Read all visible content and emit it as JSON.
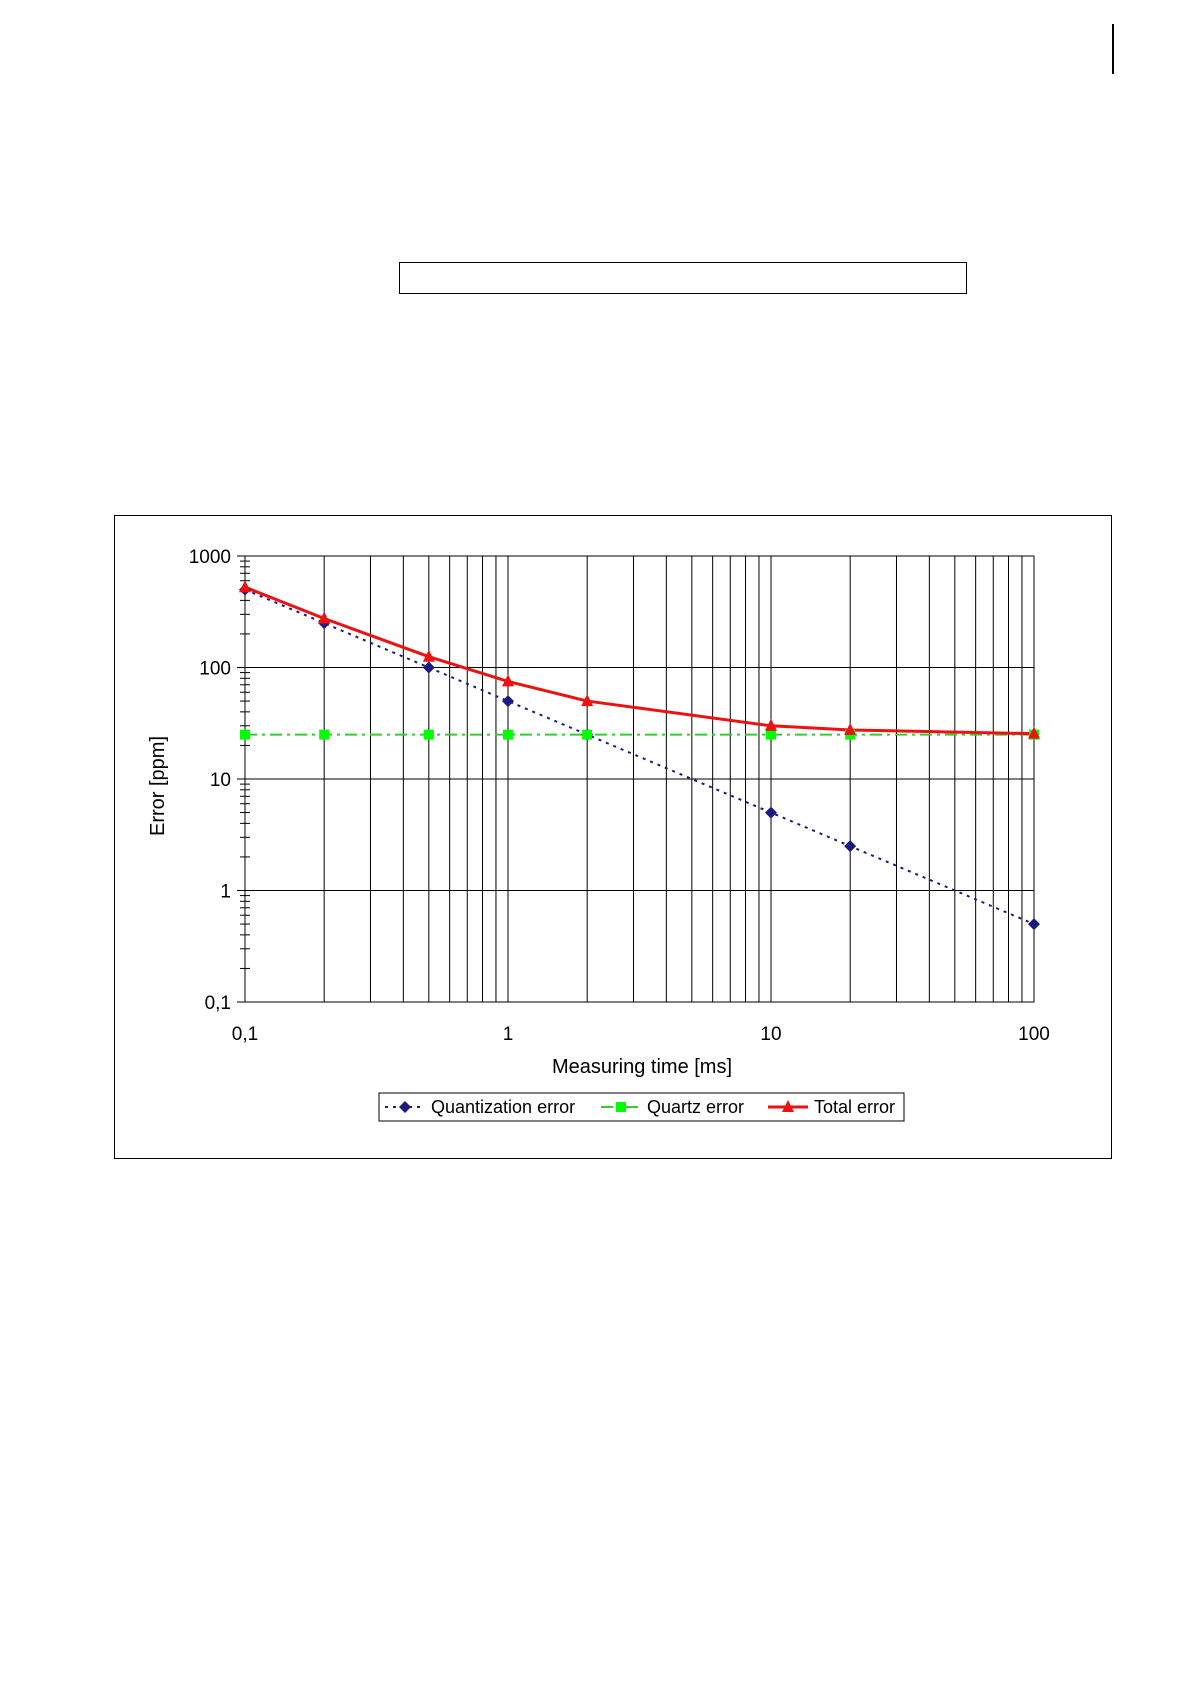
{
  "page": {
    "caption_text": ""
  },
  "chart_data": {
    "type": "line",
    "title": "",
    "xlabel": "Measuring time [ms]",
    "ylabel": "Error [ppm]",
    "x_scale": "log",
    "y_scale": "log",
    "xlim": [
      0.1,
      100
    ],
    "ylim": [
      0.1,
      1000
    ],
    "x_ticks": [
      0.1,
      1,
      10,
      100
    ],
    "x_tick_labels": [
      "0,1",
      "1",
      "10",
      "100"
    ],
    "y_ticks": [
      0.1,
      1,
      10,
      100,
      1000
    ],
    "y_tick_labels": [
      "0,1",
      "1",
      "10",
      "100",
      "1000"
    ],
    "grid": true,
    "legend_position": "bottom",
    "series": [
      {
        "name": "Quantization error",
        "color": "#1a1a80",
        "line_style": "dotted",
        "marker": "diamond",
        "x": [
          0.1,
          0.2,
          0.5,
          1,
          2,
          10,
          20,
          100
        ],
        "y": [
          500,
          250,
          100,
          50,
          25,
          5,
          2.5,
          0.5
        ]
      },
      {
        "name": "Quartz error",
        "color": "#33cc33",
        "marker_color": "#00ff00",
        "line_style": "dash-dot",
        "marker": "square",
        "x": [
          0.1,
          0.2,
          0.5,
          1,
          2,
          10,
          20,
          100
        ],
        "y": [
          25,
          25,
          25,
          25,
          25,
          25,
          25,
          25
        ]
      },
      {
        "name": "Total error",
        "color": "#ee1111",
        "line_style": "solid",
        "marker": "triangle",
        "x": [
          0.1,
          0.2,
          0.5,
          1,
          2,
          10,
          20,
          100
        ],
        "y": [
          525,
          275,
          125,
          75,
          50,
          30,
          27.5,
          25.5
        ]
      }
    ]
  }
}
